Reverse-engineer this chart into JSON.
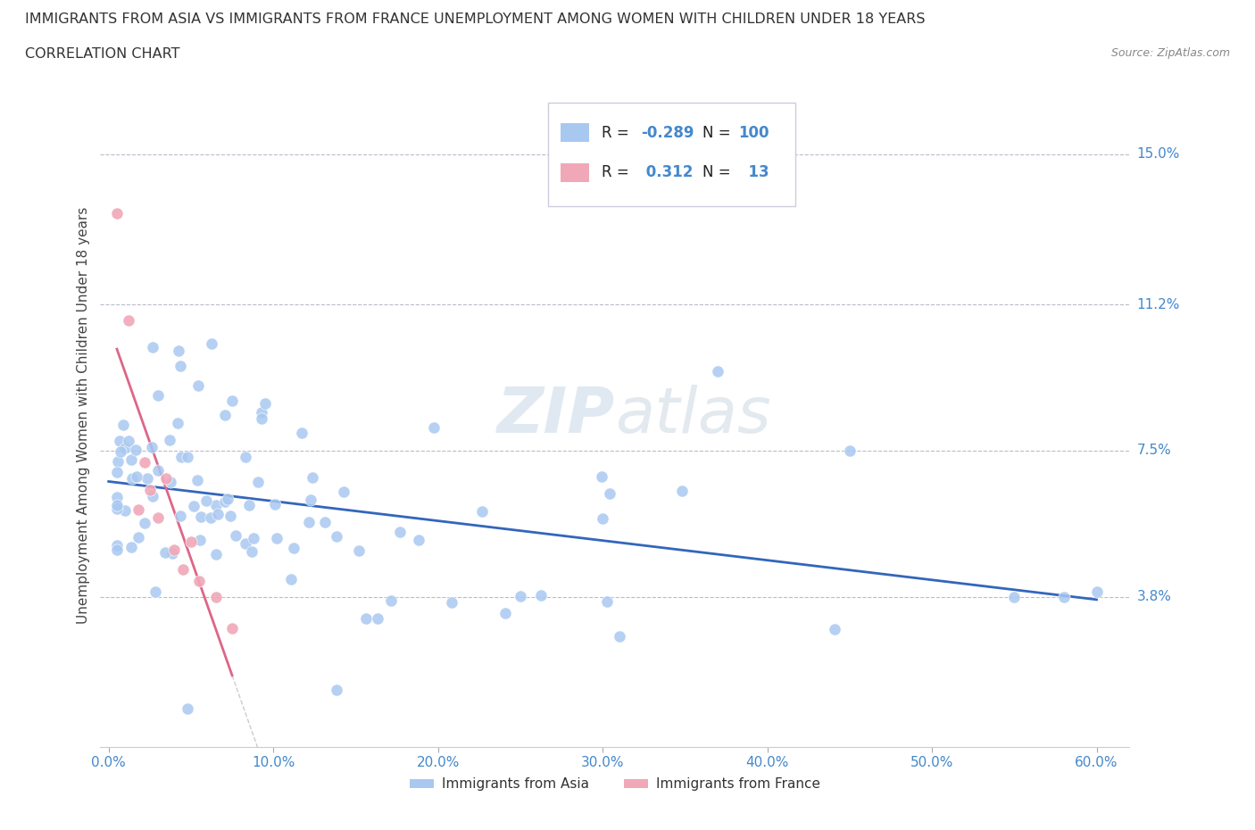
{
  "title_line1": "IMMIGRANTS FROM ASIA VS IMMIGRANTS FROM FRANCE UNEMPLOYMENT AMONG WOMEN WITH CHILDREN UNDER 18 YEARS",
  "title_line2": "CORRELATION CHART",
  "source": "Source: ZipAtlas.com",
  "ylabel": "Unemployment Among Women with Children Under 18 years",
  "xlim": [
    -0.005,
    0.62
  ],
  "ylim": [
    0.0,
    0.168
  ],
  "yticks": [
    0.038,
    0.075,
    0.112,
    0.15
  ],
  "ytick_labels": [
    "3.8%",
    "7.5%",
    "11.2%",
    "15.0%"
  ],
  "xticks": [
    0.0,
    0.1,
    0.2,
    0.3,
    0.4,
    0.5,
    0.6
  ],
  "xtick_labels": [
    "0.0%",
    "10.0%",
    "20.0%",
    "30.0%",
    "40.0%",
    "50.0%",
    "60.0%"
  ],
  "legend_label_asia": "Immigrants from Asia",
  "legend_label_france": "Immigrants from France",
  "color_asia": "#a8c8f0",
  "color_france": "#f0a8b8",
  "color_trendline_asia": "#3366bb",
  "color_trendline_france": "#dd6688",
  "color_axis_labels": "#4488cc",
  "color_dash": "#bbbbcc"
}
